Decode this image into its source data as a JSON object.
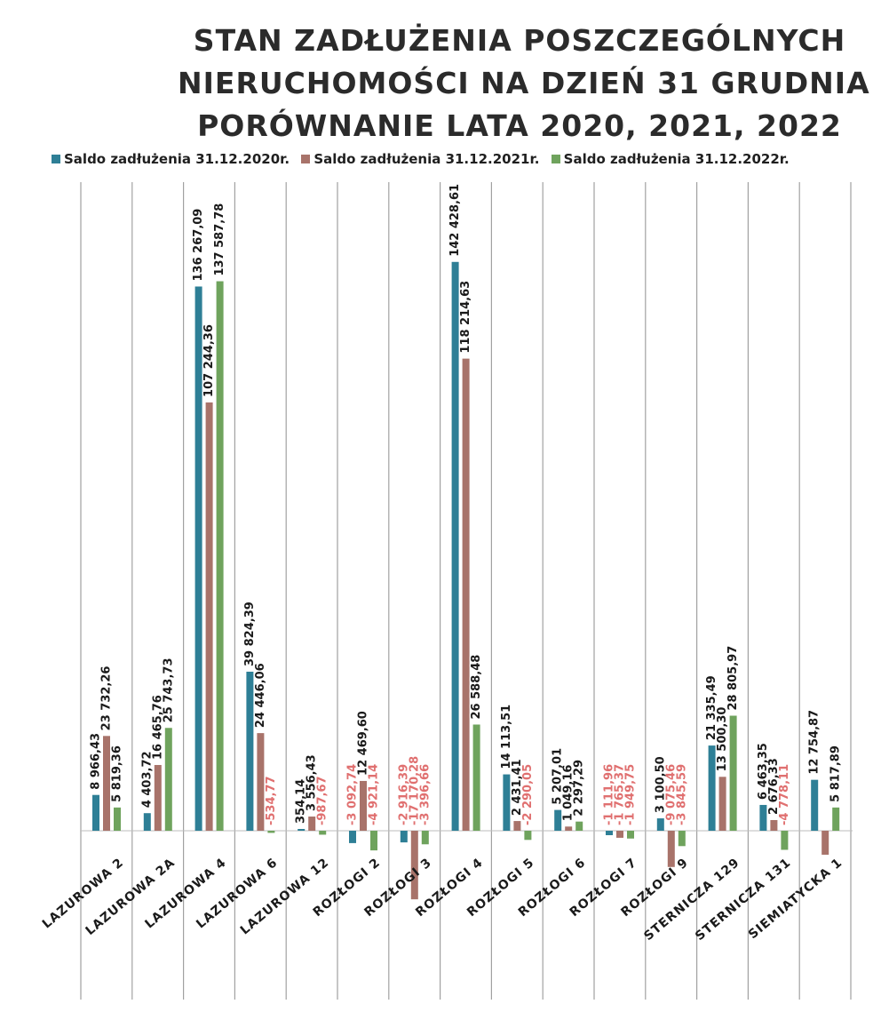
{
  "chart_data": {
    "type": "bar",
    "title": "STAN ZADŁUŻENIA POSZCZEGÓLNYCH NIERUCHOMOŚCI NA DZIEŃ 31 GRUDNIA PORÓWNANIE LATA 2020, 2021, 2022",
    "title_lines": [
      "STAN ZADŁUŻENIA POSZCZEGÓLNYCH",
      "NIERUCHOMOŚCI NA DZIEŃ 31 GRUDNIA",
      "PORÓWNANIE LATA 2020, 2021, 2022"
    ],
    "categories": [
      "LAZUROWA 2",
      "LAZUROWA 2A",
      "LAZUROWA 4",
      "LAZUROWA 6",
      "LAZUROWA 12",
      "ROZŁOGI 2",
      "ROZŁOGI 3",
      "ROZŁOGI 4",
      "ROZŁOGI 5",
      "ROZŁOGI 6",
      "ROZŁOGI 7",
      "ROZŁOGI 9",
      "STERNICZA 129",
      "STERNICZA 131",
      "SIEMIATYCKA 1"
    ],
    "series": [
      {
        "name": "Saldo zadłużenia 31.12.2020r.",
        "color": "#2E7F96",
        "values": [
          8966.43,
          4403.72,
          136267.09,
          39824.39,
          354.14,
          -3092.74,
          -2916.39,
          142428.61,
          14113.51,
          5207.01,
          -1111.96,
          3100.5,
          21335.49,
          6463.35,
          12754.87
        ],
        "labels": [
          "8 966,43",
          "4 403,72",
          "136 267,09",
          "39 824,39",
          "354,14",
          "-3 092,74",
          "-2 916,39",
          "142 428,61",
          "14 113,51",
          "5 207,01",
          "-1 111,96",
          "3 100,50",
          "21 335,49",
          "6 463,35",
          "12 754,87"
        ]
      },
      {
        "name": "Saldo zadłużenia 31.12.2021r.",
        "color": "#A8736A",
        "values": [
          23732.26,
          16465.76,
          107244.36,
          24446.06,
          3556.43,
          12469.6,
          -17170.28,
          118214.63,
          2431.41,
          1049.16,
          -1765.37,
          -9075.46,
          13500.3,
          2676.33,
          -6000.0
        ],
        "labels": [
          "23 732,26",
          "16 465,76",
          "107 244,36",
          "24 446,06",
          "3 556,43",
          "12 469,60",
          "-17 170,28",
          "118 214,63",
          "2 431,41",
          "1 049,16",
          "-1 765,37",
          "-9 075,46",
          "13 500,30",
          "2 676,33",
          ""
        ]
      },
      {
        "name": "Saldo zadłużenia 31.12.2022r.",
        "color": "#6FA35D",
        "values": [
          5819.36,
          25743.73,
          137587.78,
          -534.77,
          -987.67,
          -4921.14,
          -3396.66,
          26588.48,
          -2290.05,
          2297.29,
          -1949.75,
          -3845.59,
          28805.97,
          -4778.11,
          5817.89
        ],
        "labels": [
          "5 819,36",
          "25 743,73",
          "137 587,78",
          "-534,77",
          "-987,67",
          "-4 921,14",
          "-3 396,66",
          "26 588,48",
          "-2 290,05",
          "2 297,29",
          "-1 949,75",
          "-3 845,59",
          "28 805,97",
          "-4 778,11",
          "5 817,89"
        ]
      }
    ],
    "legend_position": "top",
    "grid": false
  }
}
